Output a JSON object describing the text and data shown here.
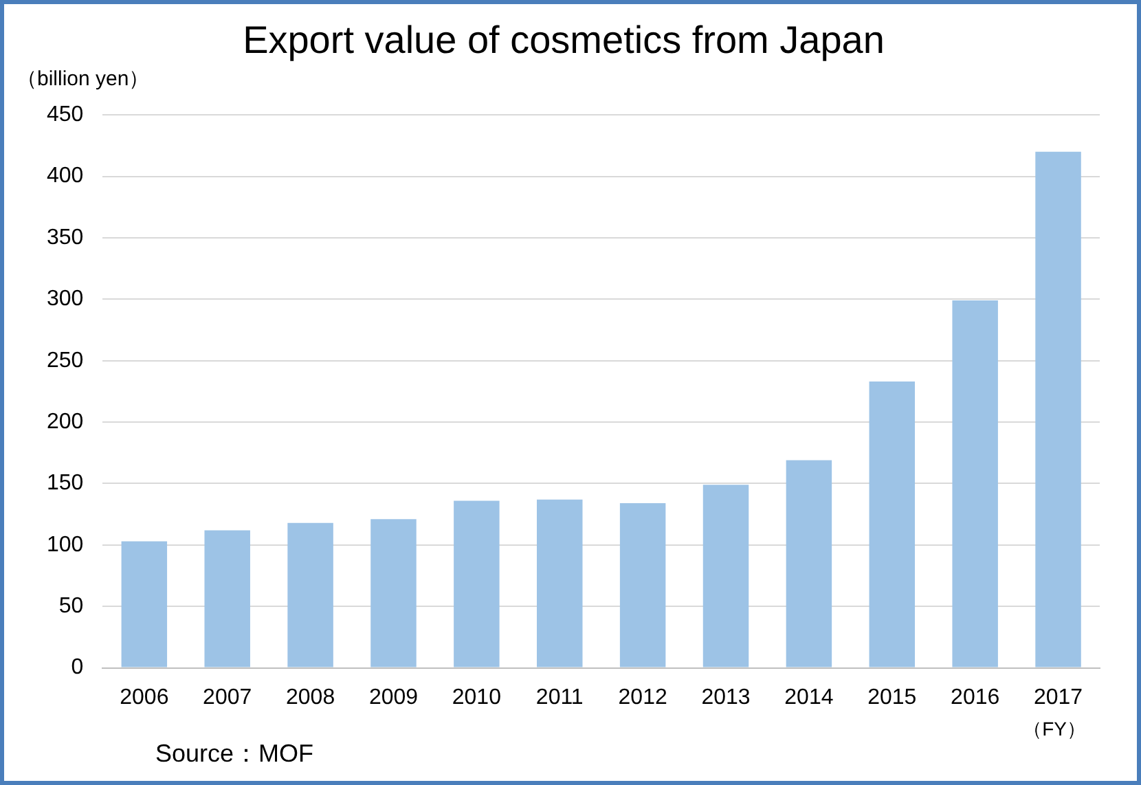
{
  "chart_data": {
    "type": "bar",
    "title": "Export value of cosmetics from Japan",
    "ylabel": "（billion yen）",
    "xlabel": "（FY）",
    "categories": [
      "2006",
      "2007",
      "2008",
      "2009",
      "2010",
      "2011",
      "2012",
      "2013",
      "2014",
      "2015",
      "2016",
      "2017"
    ],
    "values": [
      103,
      112,
      118,
      121,
      136,
      137,
      134,
      149,
      169,
      233,
      299,
      420
    ],
    "color": "#9dc3e6",
    "ylim": [
      0,
      450
    ],
    "yticks": [
      0,
      50,
      100,
      150,
      200,
      250,
      300,
      350,
      400,
      450
    ],
    "grid": "y",
    "legend": false,
    "annotations": [
      "Source：MOF"
    ]
  }
}
